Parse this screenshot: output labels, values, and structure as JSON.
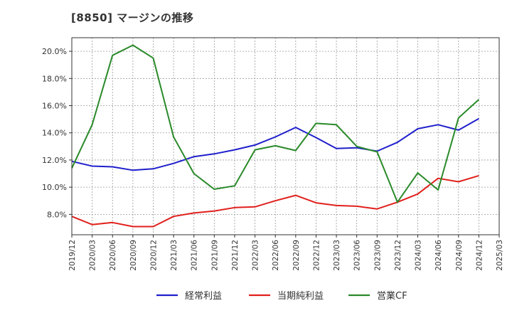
{
  "chart_data": {
    "type": "line",
    "title": "[8850]  マージンの推移",
    "x": [
      "2019/12",
      "2020/03",
      "2020/06",
      "2020/09",
      "2020/12",
      "2021/03",
      "2021/06",
      "2021/09",
      "2021/12",
      "2022/03",
      "2022/06",
      "2022/09",
      "2022/12",
      "2023/03",
      "2023/06",
      "2023/09",
      "2023/12",
      "2024/03",
      "2024/06",
      "2024/09",
      "2024/12"
    ],
    "x_ticks": [
      "2019/12",
      "2020/03",
      "2020/06",
      "2020/09",
      "2020/12",
      "2021/03",
      "2021/06",
      "2021/09",
      "2021/12",
      "2022/03",
      "2022/06",
      "2022/09",
      "2022/12",
      "2023/03",
      "2023/06",
      "2023/09",
      "2023/12",
      "2024/03",
      "2024/06",
      "2024/09",
      "2024/12",
      "2025/03"
    ],
    "y_ticks": [
      "8.0%",
      "10.0%",
      "12.0%",
      "14.0%",
      "16.0%",
      "18.0%",
      "20.0%"
    ],
    "y_tick_values": [
      8,
      10,
      12,
      14,
      16,
      18,
      20
    ],
    "ylim": [
      6.5,
      21.0
    ],
    "grid": true,
    "legend_position": "bottom",
    "series": [
      {
        "name": "経常利益",
        "color": "#1f1fcc",
        "values": [
          11.9,
          11.55,
          11.5,
          11.25,
          11.35,
          11.75,
          12.25,
          12.45,
          12.75,
          13.1,
          13.7,
          14.4,
          13.65,
          12.85,
          12.9,
          12.65,
          13.3,
          14.3,
          14.6,
          14.2,
          15.05
        ]
      },
      {
        "name": "当期純利益",
        "color": "#e0201c",
        "values": [
          7.85,
          7.25,
          7.4,
          7.1,
          7.1,
          7.85,
          8.1,
          8.25,
          8.5,
          8.55,
          9.0,
          9.4,
          8.85,
          8.65,
          8.6,
          8.4,
          8.9,
          9.5,
          10.65,
          10.4,
          10.85
        ]
      },
      {
        "name": "営業CF",
        "color": "#2a8a2a",
        "values": [
          11.4,
          14.6,
          19.7,
          20.45,
          19.5,
          13.7,
          11.0,
          9.85,
          10.1,
          12.75,
          13.05,
          12.7,
          14.7,
          14.6,
          13.0,
          12.6,
          8.9,
          11.05,
          9.8,
          15.1,
          16.45
        ]
      }
    ]
  }
}
